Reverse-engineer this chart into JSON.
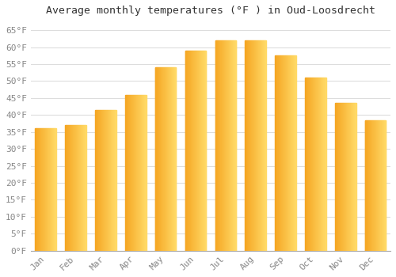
{
  "title": "Average monthly temperatures (°F ) in Oud-Loosdrecht",
  "months": [
    "Jan",
    "Feb",
    "Mar",
    "Apr",
    "May",
    "Jun",
    "Jul",
    "Aug",
    "Sep",
    "Oct",
    "Nov",
    "Dec"
  ],
  "values": [
    36,
    37,
    41.5,
    46,
    54,
    59,
    62,
    62,
    57.5,
    51,
    43.5,
    38.5
  ],
  "bar_color_left": "#F5A623",
  "bar_color_right": "#FFD966",
  "ylim": [
    0,
    68
  ],
  "yticks": [
    0,
    5,
    10,
    15,
    20,
    25,
    30,
    35,
    40,
    45,
    50,
    55,
    60,
    65
  ],
  "ytick_labels": [
    "0°F",
    "5°F",
    "10°F",
    "15°F",
    "20°F",
    "25°F",
    "30°F",
    "35°F",
    "40°F",
    "45°F",
    "50°F",
    "55°F",
    "60°F",
    "65°F"
  ],
  "background_color": "#ffffff",
  "plot_bg_color": "#ffffff",
  "grid_color": "#dddddd",
  "title_fontsize": 9.5,
  "tick_fontsize": 8,
  "font_family": "monospace",
  "bar_width": 0.7,
  "tick_color": "#888888"
}
